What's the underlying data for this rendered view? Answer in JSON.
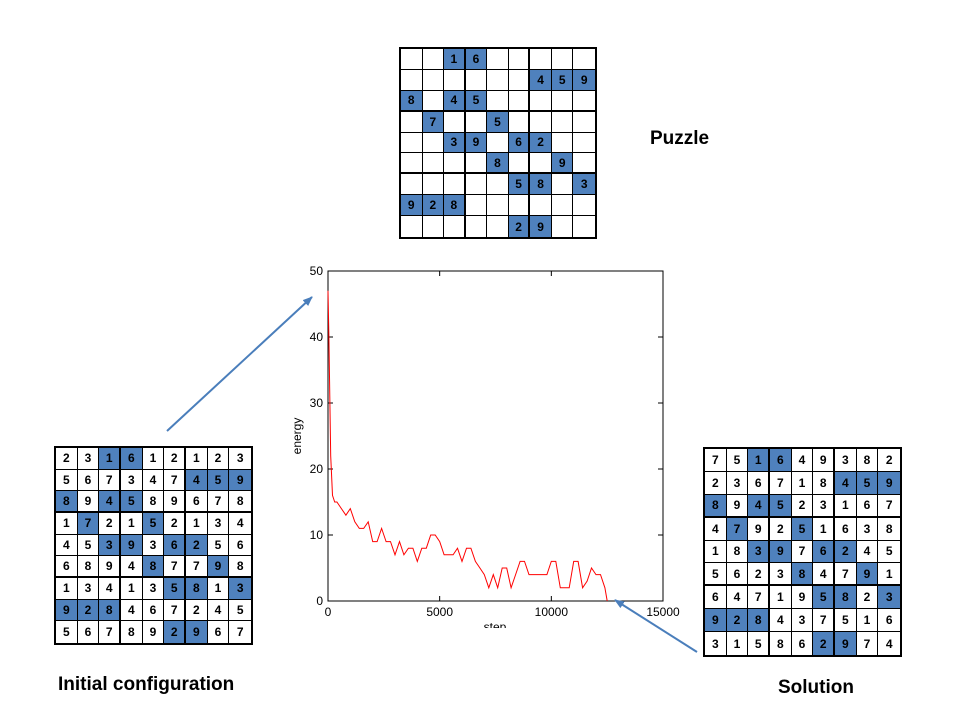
{
  "captions": {
    "puzzle": "Puzzle",
    "initial": "Initial configuration",
    "solution": "Solution"
  },
  "colors": {
    "given": "#4f81bd",
    "curve": "#ff0000",
    "arrow": "#4a7ebb"
  },
  "puzzle": {
    "rows": [
      [
        0,
        0,
        1,
        6,
        0,
        0,
        0,
        0,
        0
      ],
      [
        0,
        0,
        0,
        0,
        0,
        0,
        4,
        5,
        9
      ],
      [
        8,
        0,
        4,
        5,
        0,
        0,
        0,
        0,
        0
      ],
      [
        0,
        7,
        0,
        0,
        5,
        0,
        0,
        0,
        0
      ],
      [
        0,
        0,
        3,
        9,
        0,
        6,
        2,
        0,
        0
      ],
      [
        0,
        0,
        0,
        0,
        8,
        0,
        0,
        9,
        0
      ],
      [
        0,
        0,
        0,
        0,
        0,
        5,
        8,
        0,
        3
      ],
      [
        9,
        2,
        8,
        0,
        0,
        0,
        0,
        0,
        0
      ],
      [
        0,
        0,
        0,
        0,
        0,
        2,
        9,
        0,
        0
      ]
    ]
  },
  "initial": {
    "rows": [
      [
        2,
        3,
        1,
        6,
        1,
        2,
        1,
        2,
        3
      ],
      [
        5,
        6,
        7,
        3,
        4,
        7,
        4,
        5,
        9
      ],
      [
        8,
        9,
        4,
        5,
        8,
        9,
        6,
        7,
        8
      ],
      [
        1,
        7,
        2,
        1,
        5,
        2,
        1,
        3,
        4
      ],
      [
        4,
        5,
        3,
        9,
        3,
        6,
        2,
        5,
        6
      ],
      [
        6,
        8,
        9,
        4,
        8,
        7,
        7,
        9,
        8
      ],
      [
        1,
        3,
        4,
        1,
        3,
        5,
        8,
        1,
        3
      ],
      [
        9,
        2,
        8,
        4,
        6,
        7,
        2,
        4,
        5
      ],
      [
        5,
        6,
        7,
        8,
        9,
        2,
        9,
        6,
        7
      ]
    ]
  },
  "solution": {
    "rows": [
      [
        7,
        5,
        1,
        6,
        4,
        9,
        3,
        8,
        2
      ],
      [
        2,
        3,
        6,
        7,
        1,
        8,
        4,
        5,
        9
      ],
      [
        8,
        9,
        4,
        5,
        2,
        3,
        1,
        6,
        7
      ],
      [
        4,
        7,
        9,
        2,
        5,
        1,
        6,
        3,
        8
      ],
      [
        1,
        8,
        3,
        9,
        7,
        6,
        2,
        4,
        5
      ],
      [
        5,
        6,
        2,
        3,
        8,
        4,
        7,
        9,
        1
      ],
      [
        6,
        4,
        7,
        1,
        9,
        5,
        8,
        2,
        3
      ],
      [
        9,
        2,
        8,
        4,
        3,
        7,
        5,
        1,
        6
      ],
      [
        3,
        1,
        5,
        8,
        6,
        2,
        9,
        7,
        4
      ]
    ]
  },
  "chart_data": {
    "type": "line",
    "xlabel": "step",
    "ylabel": "energy",
    "xlim": [
      0,
      15000
    ],
    "ylim": [
      0,
      50
    ],
    "xticks": [
      "0",
      "5000",
      "10000",
      "15000"
    ],
    "yticks": [
      "0",
      "10",
      "20",
      "30",
      "40",
      "50"
    ],
    "grid": false,
    "series": [
      {
        "x": [
          0,
          40,
          80,
          120,
          200,
          300,
          400,
          600,
          800,
          1000,
          1200,
          1400,
          1600,
          1800,
          2000,
          2200,
          2400,
          2600,
          2800,
          3000,
          3200,
          3400,
          3600,
          3800,
          4000,
          4200,
          4400,
          4600,
          4800,
          5000,
          5200,
          5400,
          5600,
          5800,
          6000,
          6200,
          6400,
          6600,
          6800,
          7000,
          7200,
          7400,
          7600,
          7800,
          8000,
          8200,
          8400,
          8600,
          8800,
          9000,
          9200,
          9400,
          9600,
          9800,
          10000,
          10200,
          10400,
          10600,
          10800,
          11000,
          11200,
          11400,
          11600,
          11800,
          12000,
          12200,
          12400,
          12500
        ],
        "values": [
          47,
          40,
          31,
          22,
          16,
          15,
          15,
          14,
          13,
          14,
          12,
          11,
          11,
          12,
          9,
          9,
          11,
          9,
          9,
          7,
          9,
          7,
          8,
          8,
          6,
          8,
          8,
          10,
          10,
          9,
          7,
          7,
          7,
          8,
          6,
          8,
          8,
          6,
          5,
          4,
          2,
          4,
          2,
          5,
          5,
          2,
          4,
          6,
          6,
          4,
          4,
          4,
          4,
          4,
          6,
          6,
          2,
          2,
          2,
          6,
          6,
          2,
          3,
          5,
          4,
          4,
          2,
          0
        ]
      }
    ]
  }
}
